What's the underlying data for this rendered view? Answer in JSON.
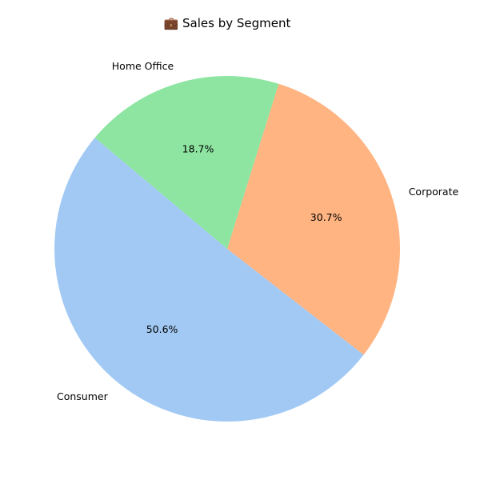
{
  "chart_data": {
    "type": "pie",
    "title": "💼 Sales by Segment",
    "categories": [
      "Consumer",
      "Corporate",
      "Home Office"
    ],
    "values": [
      50.6,
      30.7,
      18.7
    ],
    "percent_labels": [
      "50.6%",
      "30.7%",
      "18.7%"
    ],
    "colors": [
      "#a1c9f4",
      "#ffb482",
      "#8de5a1"
    ],
    "start_angle_deg": 140,
    "direction": "counterclockwise"
  }
}
